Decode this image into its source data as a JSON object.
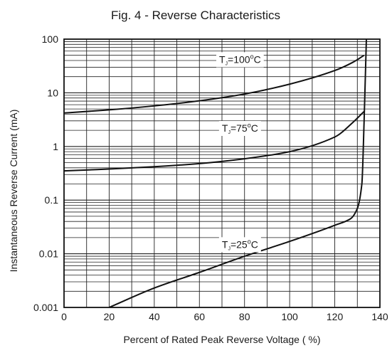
{
  "chart_data": {
    "type": "line",
    "title": "Fig. 4  - Reverse Characteristics",
    "xlabel": "Percent of Rated Peak Reverse Voltage ( %)",
    "ylabel": "Instantaneous Reverse Current (mA)",
    "xlim": [
      0,
      140
    ],
    "ylim": [
      0.001,
      100
    ],
    "yscale": "log",
    "grid": true,
    "x_ticks": [
      "0",
      "20",
      "40",
      "60",
      "80",
      "100",
      "120",
      "140"
    ],
    "y_ticks": [
      "0.001",
      "0.01",
      "0.1",
      "1",
      "10",
      "100"
    ],
    "series": [
      {
        "name": "TJ=100°C",
        "x": [
          0,
          20,
          40,
          60,
          80,
          100,
          120,
          128,
          133
        ],
        "y": [
          4.2,
          4.8,
          5.7,
          7.1,
          9.5,
          14.5,
          26,
          37,
          50
        ]
      },
      {
        "name": "TJ=75°C",
        "x": [
          0,
          20,
          40,
          60,
          80,
          100,
          120,
          128,
          133
        ],
        "y": [
          0.35,
          0.38,
          0.42,
          0.48,
          0.59,
          0.8,
          1.5,
          2.8,
          4.5
        ]
      },
      {
        "name": "TJ=25°C",
        "x": [
          20,
          40,
          60,
          80,
          100,
          120,
          127,
          130,
          132,
          133,
          134
        ],
        "y": [
          0.001,
          0.0023,
          0.0045,
          0.009,
          0.017,
          0.034,
          0.045,
          0.07,
          0.2,
          3,
          100
        ]
      }
    ],
    "labels": [
      {
        "base": "T",
        "sub": "J",
        "mid": "=100",
        "sup": "o",
        "end": "C",
        "x": 78,
        "y": 42
      },
      {
        "base": "T",
        "sub": "J",
        "mid": "=75",
        "sup": "o",
        "end": "C",
        "x": 78,
        "y": 2.2
      },
      {
        "base": "T",
        "sub": "J",
        "mid": "=25",
        "sup": "o",
        "end": "C",
        "x": 78,
        "y": 0.015
      }
    ]
  }
}
